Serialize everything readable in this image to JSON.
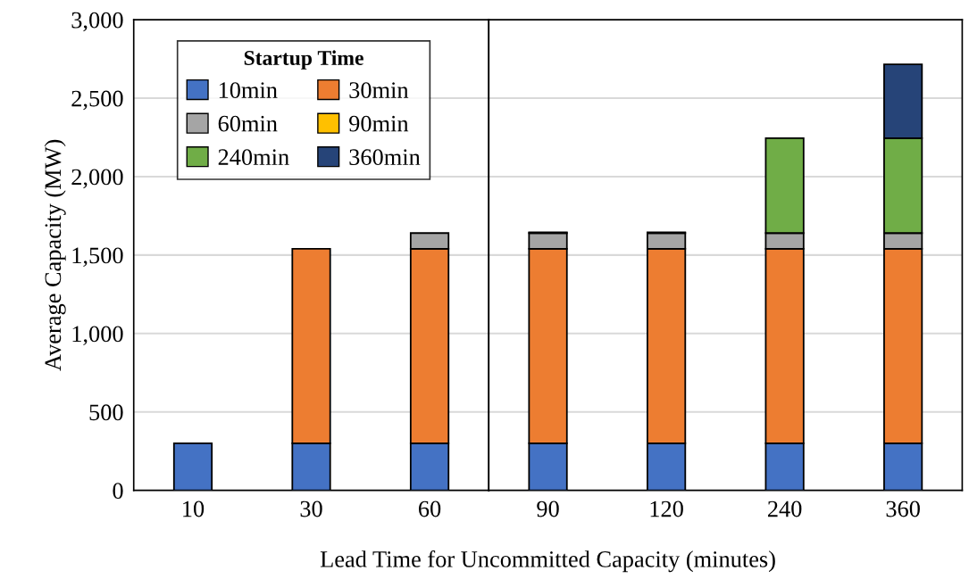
{
  "chart_data": [
    {
      "type": "bar",
      "stacked": true,
      "ylabel": "Average Capacity (MW)",
      "legend_title": "Startup Time",
      "legend": "top left",
      "grid": "y",
      "categories": [
        "10",
        "30",
        "60"
      ],
      "series": [
        {
          "name": "10min",
          "color": "#4472c4",
          "values": [
            300,
            300,
            300
          ]
        },
        {
          "name": "30min",
          "color": "#ed7d31",
          "values": [
            null,
            1240,
            1240
          ]
        },
        {
          "name": "60min",
          "color": "#a5a5a5",
          "values": [
            null,
            null,
            100
          ]
        },
        {
          "name": "90min",
          "color": "#ffc000",
          "values": [
            null,
            null,
            null
          ]
        },
        {
          "name": "240min",
          "color": "#70ad47",
          "values": [
            null,
            null,
            null
          ]
        },
        {
          "name": "360min",
          "color": "#264478",
          "values": [
            null,
            null,
            null
          ]
        }
      ],
      "ylim": [
        0,
        3000
      ],
      "yticks": [
        0,
        {
          "value": 500,
          "label": "500"
        },
        {
          "value": 1000,
          "label": "1,000"
        },
        {
          "value": 1500,
          "label": "1,500"
        },
        {
          "value": 2000,
          "label": "2,000"
        },
        {
          "value": 2500,
          "label": "2,500"
        },
        {
          "value": 3000,
          "label": "3,000"
        }
      ]
    },
    {
      "type": "bar",
      "stacked": true,
      "xlabel": "Lead Time for Uncommitted Capacity (minutes)",
      "grid": "y",
      "tick_labels": "x",
      "categories": [
        "90",
        "120",
        "240",
        "360"
      ],
      "series": [
        {
          "color": "#4472c4",
          "values": [
            300,
            300,
            300,
            300
          ]
        },
        {
          "color": "#ed7d31",
          "values": [
            1240,
            1240,
            1240,
            1240
          ]
        },
        {
          "color": "#a5a5a5",
          "values": [
            100,
            100,
            100,
            100
          ]
        },
        {
          "color": "#ffc000",
          "values": [
            5,
            5,
            null,
            null
          ]
        },
        {
          "color": "#70ad47",
          "values": [
            null,
            null,
            605,
            605
          ]
        },
        {
          "color": "#264478",
          "values": [
            null,
            null,
            null,
            470
          ]
        }
      ],
      "ylim": [
        0,
        3000
      ],
      "yticks": [
        0,
        500,
        1000,
        1500,
        2000,
        2500,
        3000
      ]
    }
  ]
}
